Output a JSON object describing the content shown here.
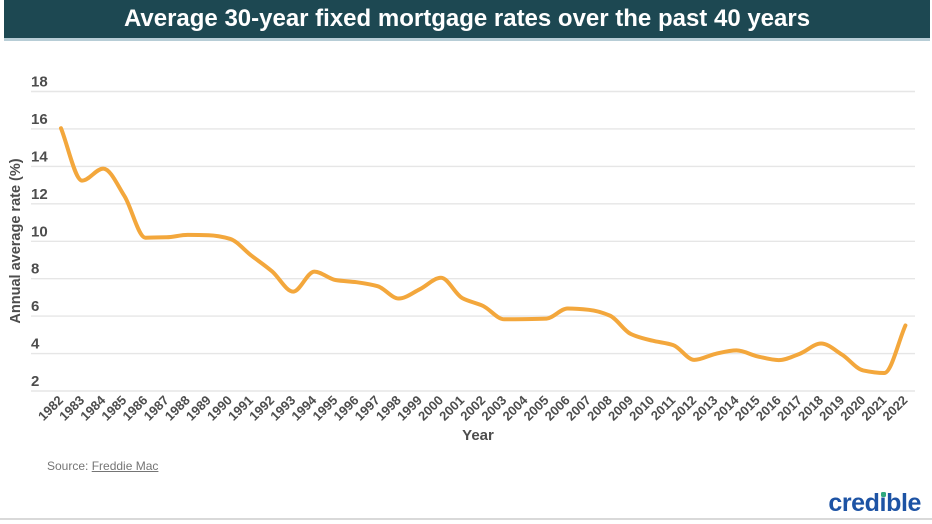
{
  "header": {
    "title": "Average 30-year fixed mortgage rates over the past 40 years",
    "bg_color": "#1D4852",
    "text_color": "#FFFFFF"
  },
  "chart_data": {
    "type": "line",
    "title": "Average 30-year fixed mortgage rates over the past 40 years",
    "x": [
      1982,
      1983,
      1984,
      1985,
      1986,
      1987,
      1988,
      1989,
      1990,
      1991,
      1992,
      1993,
      1994,
      1995,
      1996,
      1997,
      1998,
      1999,
      2000,
      2001,
      2002,
      2003,
      2004,
      2005,
      2006,
      2007,
      2008,
      2009,
      2010,
      2011,
      2012,
      2013,
      2014,
      2015,
      2016,
      2017,
      2018,
      2019,
      2020,
      2021,
      2022
    ],
    "series": [
      {
        "name": "Average 30-year fixed mortgage rate",
        "values": [
          16.04,
          13.24,
          13.88,
          12.43,
          10.19,
          10.21,
          10.34,
          10.32,
          10.13,
          9.25,
          8.39,
          7.31,
          8.38,
          7.93,
          7.81,
          7.6,
          6.94,
          7.44,
          8.05,
          6.97,
          6.54,
          5.83,
          5.84,
          5.87,
          6.41,
          6.34,
          6.03,
          5.04,
          4.69,
          4.45,
          3.66,
          3.98,
          4.17,
          3.85,
          3.65,
          3.99,
          4.54,
          3.94,
          3.1,
          2.96,
          5.5
        ]
      }
    ],
    "xlabel": "Year",
    "ylabel": "Annual average rate (%)",
    "ylim": [
      2,
      18
    ],
    "y_ticks": [
      2,
      4,
      6,
      8,
      10,
      12,
      14,
      16,
      18
    ],
    "grid": "horizontal only",
    "legend": "none",
    "line_color": "#F3A73C",
    "gridline_color": "#E6E6E6",
    "tick_text_color": "#4D4D4D"
  },
  "footer": {
    "source_label": "Source:",
    "source_link": "Freddie Mac"
  },
  "logo": {
    "text": "credible",
    "parts": {
      "pre": "cred",
      "i": "ı",
      "post": "ble"
    },
    "blue": "#1D53A4",
    "green": "#2FA97E"
  }
}
